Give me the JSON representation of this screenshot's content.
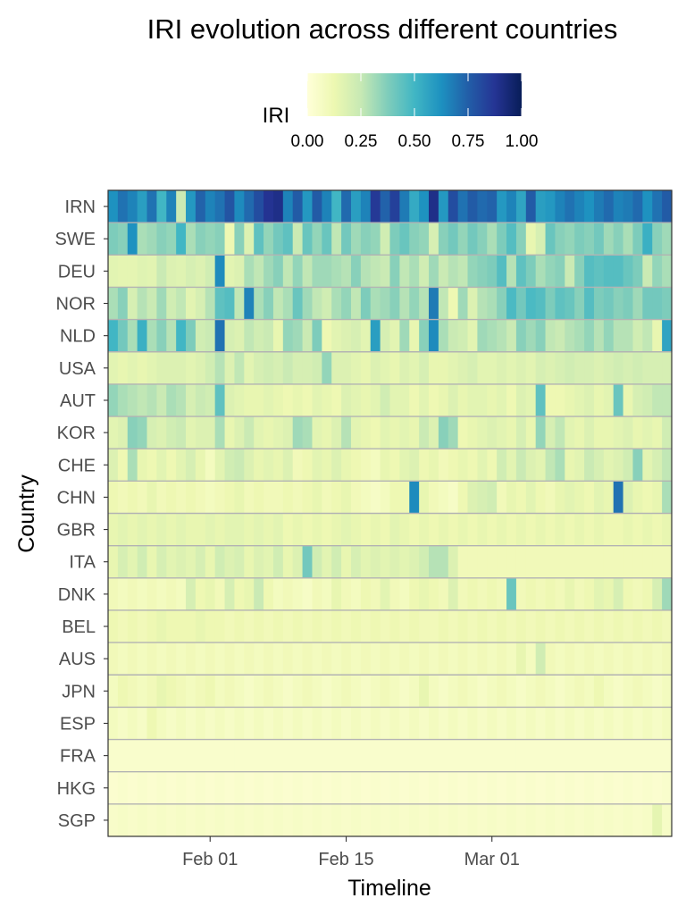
{
  "chart_data": {
    "type": "heatmap",
    "title": "IRI evolution across different countries",
    "xlabel": "Timeline",
    "ylabel": "Country",
    "x_start": "2020-01-22",
    "x_ticks": [
      "Feb 01",
      "Feb 15",
      "Mar 01"
    ],
    "x_tick_dates": [
      "2020-02-01",
      "2020-02-15",
      "2020-03-01"
    ],
    "legend": {
      "title": "IRI",
      "position": "top",
      "ticks": [
        "0.00",
        "0.25",
        "0.50",
        "0.75",
        "1.00"
      ],
      "range": [
        0,
        1
      ],
      "colors": [
        "#ffffd9",
        "#edf8b1",
        "#c7e9b4",
        "#7fcdbb",
        "#41b6c4",
        "#1d91c0",
        "#225ea8",
        "#253494",
        "#081d58"
      ]
    },
    "grid_color": "#b3b3b3",
    "countries": [
      "IRN",
      "SWE",
      "DEU",
      "NOR",
      "NLD",
      "USA",
      "AUT",
      "KOR",
      "CHE",
      "CHN",
      "GBR",
      "ITA",
      "DNK",
      "BEL",
      "AUS",
      "JPN",
      "ESP",
      "FRA",
      "HKG",
      "SGP"
    ],
    "values": [
      [
        0.62,
        0.7,
        0.66,
        0.58,
        0.7,
        0.5,
        0.66,
        0.24,
        0.6,
        0.74,
        0.66,
        0.7,
        0.78,
        0.64,
        0.72,
        0.8,
        0.88,
        0.9,
        0.66,
        0.76,
        0.6,
        0.76,
        0.66,
        0.5,
        0.72,
        0.58,
        0.66,
        0.86,
        0.74,
        0.84,
        0.68,
        0.54,
        0.62,
        0.9,
        0.6,
        0.8,
        0.7,
        0.76,
        0.72,
        0.74,
        0.6,
        0.66,
        0.56,
        0.76,
        0.58,
        0.6,
        0.66,
        0.7,
        0.66,
        0.62,
        0.68,
        0.72,
        0.66,
        0.68,
        0.72,
        0.62,
        0.7,
        0.76
      ],
      [
        0.38,
        0.36,
        0.62,
        0.3,
        0.32,
        0.36,
        0.34,
        0.5,
        0.3,
        0.36,
        0.34,
        0.36,
        0.12,
        0.36,
        0.18,
        0.44,
        0.34,
        0.4,
        0.44,
        0.24,
        0.42,
        0.34,
        0.42,
        0.26,
        0.4,
        0.32,
        0.36,
        0.34,
        0.22,
        0.38,
        0.42,
        0.36,
        0.34,
        0.2,
        0.36,
        0.4,
        0.34,
        0.4,
        0.36,
        0.3,
        0.38,
        0.46,
        0.36,
        0.14,
        0.2,
        0.42,
        0.36,
        0.34,
        0.38,
        0.36,
        0.4,
        0.32,
        0.36,
        0.3,
        0.38,
        0.52,
        0.36,
        0.32
      ],
      [
        0.16,
        0.15,
        0.15,
        0.17,
        0.16,
        0.24,
        0.18,
        0.17,
        0.2,
        0.18,
        0.22,
        0.64,
        0.16,
        0.18,
        0.3,
        0.26,
        0.32,
        0.36,
        0.26,
        0.34,
        0.26,
        0.32,
        0.32,
        0.3,
        0.28,
        0.36,
        0.28,
        0.26,
        0.24,
        0.36,
        0.26,
        0.3,
        0.22,
        0.32,
        0.24,
        0.28,
        0.26,
        0.34,
        0.36,
        0.38,
        0.46,
        0.28,
        0.44,
        0.38,
        0.3,
        0.34,
        0.36,
        0.24,
        0.36,
        0.46,
        0.44,
        0.46,
        0.46,
        0.42,
        0.38,
        0.24,
        0.34,
        0.3
      ],
      [
        0.3,
        0.36,
        0.2,
        0.28,
        0.24,
        0.32,
        0.22,
        0.26,
        0.16,
        0.2,
        0.28,
        0.44,
        0.46,
        0.26,
        0.66,
        0.3,
        0.36,
        0.26,
        0.3,
        0.42,
        0.32,
        0.26,
        0.22,
        0.3,
        0.34,
        0.26,
        0.38,
        0.3,
        0.32,
        0.36,
        0.28,
        0.34,
        0.28,
        0.68,
        0.26,
        0.12,
        0.32,
        0.18,
        0.28,
        0.3,
        0.36,
        0.48,
        0.4,
        0.48,
        0.46,
        0.38,
        0.44,
        0.42,
        0.36,
        0.46,
        0.38,
        0.4,
        0.36,
        0.38,
        0.32,
        0.4,
        0.4,
        0.38
      ],
      [
        0.5,
        0.4,
        0.3,
        0.52,
        0.3,
        0.36,
        0.28,
        0.5,
        0.38,
        0.22,
        0.24,
        0.7,
        0.2,
        0.18,
        0.26,
        0.22,
        0.24,
        0.14,
        0.34,
        0.32,
        0.24,
        0.38,
        0.12,
        0.16,
        0.18,
        0.2,
        0.16,
        0.58,
        0.2,
        0.16,
        0.32,
        0.14,
        0.36,
        0.64,
        0.3,
        0.24,
        0.22,
        0.16,
        0.32,
        0.3,
        0.28,
        0.24,
        0.36,
        0.32,
        0.36,
        0.26,
        0.24,
        0.28,
        0.3,
        0.34,
        0.28,
        0.34,
        0.28,
        0.28,
        0.22,
        0.26,
        0.14,
        0.56
      ],
      [
        0.16,
        0.14,
        0.16,
        0.14,
        0.16,
        0.18,
        0.18,
        0.18,
        0.16,
        0.18,
        0.22,
        0.28,
        0.18,
        0.26,
        0.16,
        0.2,
        0.22,
        0.2,
        0.24,
        0.2,
        0.2,
        0.22,
        0.34,
        0.18,
        0.18,
        0.16,
        0.14,
        0.18,
        0.16,
        0.14,
        0.18,
        0.16,
        0.2,
        0.14,
        0.14,
        0.16,
        0.18,
        0.2,
        0.16,
        0.16,
        0.18,
        0.16,
        0.18,
        0.16,
        0.2,
        0.18,
        0.2,
        0.22,
        0.2,
        0.2,
        0.18,
        0.2,
        0.22,
        0.2,
        0.22,
        0.2,
        0.2,
        0.2
      ],
      [
        0.34,
        0.3,
        0.28,
        0.26,
        0.28,
        0.24,
        0.3,
        0.28,
        0.2,
        0.24,
        0.22,
        0.44,
        0.18,
        0.16,
        0.14,
        0.14,
        0.16,
        0.14,
        0.12,
        0.14,
        0.12,
        0.16,
        0.14,
        0.12,
        0.18,
        0.16,
        0.14,
        0.16,
        0.22,
        0.16,
        0.16,
        0.12,
        0.16,
        0.12,
        0.14,
        0.18,
        0.14,
        0.16,
        0.16,
        0.14,
        0.16,
        0.12,
        0.18,
        0.16,
        0.44,
        0.12,
        0.12,
        0.14,
        0.16,
        0.18,
        0.14,
        0.16,
        0.42,
        0.14,
        0.2,
        0.22,
        0.26,
        0.26
      ],
      [
        0.16,
        0.18,
        0.36,
        0.34,
        0.2,
        0.18,
        0.22,
        0.24,
        0.16,
        0.18,
        0.18,
        0.3,
        0.14,
        0.18,
        0.24,
        0.16,
        0.14,
        0.16,
        0.18,
        0.32,
        0.3,
        0.16,
        0.14,
        0.18,
        0.28,
        0.16,
        0.14,
        0.12,
        0.16,
        0.14,
        0.16,
        0.14,
        0.24,
        0.18,
        0.36,
        0.32,
        0.12,
        0.14,
        0.16,
        0.18,
        0.16,
        0.14,
        0.2,
        0.14,
        0.34,
        0.2,
        0.26,
        0.16,
        0.14,
        0.18,
        0.14,
        0.14,
        0.16,
        0.18,
        0.14,
        0.16,
        0.14,
        0.22
      ],
      [
        0.18,
        0.12,
        0.3,
        0.14,
        0.12,
        0.16,
        0.12,
        0.16,
        0.2,
        0.14,
        0.08,
        0.16,
        0.22,
        0.24,
        0.18,
        0.14,
        0.16,
        0.14,
        0.18,
        0.1,
        0.12,
        0.16,
        0.14,
        0.18,
        0.14,
        0.12,
        0.1,
        0.08,
        0.14,
        0.12,
        0.16,
        0.18,
        0.12,
        0.14,
        0.1,
        0.12,
        0.14,
        0.12,
        0.16,
        0.12,
        0.22,
        0.16,
        0.24,
        0.18,
        0.16,
        0.26,
        0.3,
        0.14,
        0.16,
        0.24,
        0.2,
        0.16,
        0.18,
        0.22,
        0.36,
        0.16,
        0.2,
        0.26
      ],
      [
        0.12,
        0.1,
        0.12,
        0.1,
        0.14,
        0.1,
        0.12,
        0.1,
        0.12,
        0.1,
        0.08,
        0.1,
        0.12,
        0.14,
        0.1,
        0.12,
        0.1,
        0.1,
        0.12,
        0.1,
        0.12,
        0.14,
        0.1,
        0.12,
        0.14,
        0.1,
        0.08,
        0.06,
        0.08,
        0.12,
        0.12,
        0.64,
        0.14,
        0.1,
        0.08,
        0.06,
        0.12,
        0.18,
        0.2,
        0.22,
        0.1,
        0.14,
        0.12,
        0.16,
        0.12,
        0.1,
        0.14,
        0.16,
        0.14,
        0.12,
        0.16,
        0.14,
        0.7,
        0.18,
        0.14,
        0.12,
        0.14,
        0.3
      ],
      [
        0.14,
        0.16,
        0.14,
        0.16,
        0.14,
        0.16,
        0.14,
        0.16,
        0.14,
        0.14,
        0.16,
        0.14,
        0.16,
        0.16,
        0.14,
        0.16,
        0.14,
        0.16,
        0.12,
        0.14,
        0.12,
        0.14,
        0.12,
        0.14,
        0.16,
        0.14,
        0.12,
        0.14,
        0.12,
        0.16,
        0.14,
        0.12,
        0.14,
        0.12,
        0.14,
        0.12,
        0.14,
        0.12,
        0.14,
        0.12,
        0.14,
        0.12,
        0.14,
        0.12,
        0.14,
        0.12,
        0.14,
        0.12,
        0.14,
        0.12,
        0.14,
        0.12,
        0.12,
        0.14,
        0.12,
        0.14,
        0.12,
        0.14
      ],
      [
        0.14,
        0.2,
        0.16,
        0.22,
        0.14,
        0.2,
        0.16,
        0.18,
        0.16,
        0.2,
        0.14,
        0.22,
        0.18,
        0.2,
        0.14,
        0.18,
        0.16,
        0.22,
        0.14,
        0.18,
        0.4,
        0.22,
        0.16,
        0.22,
        0.14,
        0.2,
        0.16,
        0.18,
        0.16,
        0.18,
        0.16,
        0.18,
        0.22,
        0.28,
        0.28,
        0.18,
        0.1,
        0.1,
        0.1,
        0.1,
        0.1,
        0.1,
        0.1,
        0.1,
        0.1,
        0.1,
        0.1,
        0.1,
        0.1,
        0.1,
        0.1,
        0.1,
        0.1,
        0.1,
        0.1,
        0.1,
        0.1,
        0.1
      ],
      [
        0.1,
        0.08,
        0.1,
        0.08,
        0.1,
        0.08,
        0.1,
        0.08,
        0.2,
        0.12,
        0.14,
        0.1,
        0.2,
        0.12,
        0.14,
        0.24,
        0.12,
        0.08,
        0.1,
        0.08,
        0.06,
        0.1,
        0.08,
        0.14,
        0.1,
        0.08,
        0.12,
        0.1,
        0.16,
        0.1,
        0.08,
        0.12,
        0.14,
        0.12,
        0.1,
        0.18,
        0.1,
        0.12,
        0.1,
        0.12,
        0.1,
        0.42,
        0.1,
        0.12,
        0.1,
        0.12,
        0.1,
        0.14,
        0.1,
        0.12,
        0.16,
        0.14,
        0.2,
        0.12,
        0.1,
        0.12,
        0.2,
        0.32
      ],
      [
        0.12,
        0.1,
        0.12,
        0.1,
        0.12,
        0.14,
        0.12,
        0.12,
        0.12,
        0.14,
        0.12,
        0.12,
        0.1,
        0.12,
        0.1,
        0.12,
        0.1,
        0.12,
        0.1,
        0.12,
        0.1,
        0.12,
        0.1,
        0.12,
        0.1,
        0.12,
        0.1,
        0.12,
        0.1,
        0.12,
        0.1,
        0.12,
        0.1,
        0.1,
        0.12,
        0.1,
        0.12,
        0.1,
        0.12,
        0.1,
        0.12,
        0.1,
        0.12,
        0.1,
        0.12,
        0.1,
        0.12,
        0.1,
        0.12,
        0.1,
        0.12,
        0.1,
        0.12,
        0.1,
        0.12,
        0.1,
        0.12,
        0.1
      ],
      [
        0.1,
        0.08,
        0.1,
        0.08,
        0.1,
        0.08,
        0.1,
        0.08,
        0.1,
        0.08,
        0.1,
        0.08,
        0.1,
        0.08,
        0.1,
        0.08,
        0.1,
        0.08,
        0.1,
        0.08,
        0.1,
        0.08,
        0.1,
        0.08,
        0.1,
        0.08,
        0.1,
        0.08,
        0.1,
        0.08,
        0.1,
        0.08,
        0.1,
        0.08,
        0.1,
        0.08,
        0.1,
        0.08,
        0.1,
        0.08,
        0.1,
        0.08,
        0.14,
        0.08,
        0.22,
        0.1,
        0.08,
        0.1,
        0.08,
        0.1,
        0.08,
        0.1,
        0.08,
        0.1,
        0.08,
        0.1,
        0.08,
        0.1
      ],
      [
        0.08,
        0.12,
        0.1,
        0.08,
        0.1,
        0.14,
        0.12,
        0.1,
        0.08,
        0.1,
        0.12,
        0.08,
        0.1,
        0.08,
        0.06,
        0.08,
        0.1,
        0.08,
        0.06,
        0.08,
        0.1,
        0.08,
        0.06,
        0.08,
        0.1,
        0.08,
        0.06,
        0.08,
        0.1,
        0.08,
        0.06,
        0.08,
        0.14,
        0.08,
        0.06,
        0.08,
        0.1,
        0.08,
        0.06,
        0.08,
        0.1,
        0.08,
        0.06,
        0.08,
        0.1,
        0.08,
        0.06,
        0.08,
        0.1,
        0.08,
        0.12,
        0.08,
        0.06,
        0.08,
        0.1,
        0.08,
        0.06,
        0.08
      ],
      [
        0.08,
        0.06,
        0.08,
        0.06,
        0.12,
        0.08,
        0.06,
        0.08,
        0.06,
        0.08,
        0.06,
        0.08,
        0.06,
        0.08,
        0.06,
        0.08,
        0.06,
        0.08,
        0.06,
        0.08,
        0.06,
        0.08,
        0.06,
        0.08,
        0.06,
        0.08,
        0.06,
        0.08,
        0.06,
        0.08,
        0.06,
        0.08,
        0.06,
        0.08,
        0.06,
        0.08,
        0.06,
        0.08,
        0.06,
        0.08,
        0.06,
        0.08,
        0.06,
        0.08,
        0.06,
        0.08,
        0.06,
        0.08,
        0.06,
        0.08,
        0.06,
        0.08,
        0.06,
        0.08,
        0.06,
        0.08,
        0.06,
        0.08
      ],
      [
        0.04,
        0.04,
        0.04,
        0.04,
        0.04,
        0.04,
        0.04,
        0.04,
        0.04,
        0.04,
        0.04,
        0.04,
        0.04,
        0.04,
        0.04,
        0.04,
        0.04,
        0.04,
        0.04,
        0.04,
        0.04,
        0.04,
        0.04,
        0.04,
        0.04,
        0.04,
        0.04,
        0.04,
        0.04,
        0.04,
        0.04,
        0.04,
        0.04,
        0.04,
        0.04,
        0.04,
        0.04,
        0.04,
        0.04,
        0.04,
        0.04,
        0.04,
        0.04,
        0.04,
        0.04,
        0.04,
        0.04,
        0.04,
        0.04,
        0.04,
        0.04,
        0.04,
        0.04,
        0.04,
        0.04,
        0.04,
        0.04,
        0.04
      ],
      [
        0.03,
        0.04,
        0.03,
        0.04,
        0.03,
        0.04,
        0.03,
        0.04,
        0.03,
        0.04,
        0.03,
        0.04,
        0.03,
        0.04,
        0.03,
        0.04,
        0.03,
        0.04,
        0.03,
        0.04,
        0.03,
        0.04,
        0.03,
        0.04,
        0.03,
        0.04,
        0.03,
        0.04,
        0.03,
        0.04,
        0.03,
        0.04,
        0.03,
        0.04,
        0.03,
        0.04,
        0.03,
        0.04,
        0.03,
        0.04,
        0.03,
        0.04,
        0.03,
        0.04,
        0.03,
        0.04,
        0.03,
        0.04,
        0.03,
        0.04,
        0.03,
        0.04,
        0.03,
        0.04,
        0.03,
        0.04,
        0.03,
        0.04
      ],
      [
        0.05,
        0.06,
        0.05,
        0.06,
        0.05,
        0.06,
        0.05,
        0.06,
        0.05,
        0.06,
        0.05,
        0.06,
        0.05,
        0.06,
        0.05,
        0.06,
        0.05,
        0.06,
        0.05,
        0.06,
        0.05,
        0.06,
        0.05,
        0.06,
        0.05,
        0.06,
        0.05,
        0.06,
        0.05,
        0.06,
        0.05,
        0.06,
        0.05,
        0.06,
        0.05,
        0.06,
        0.05,
        0.06,
        0.05,
        0.06,
        0.05,
        0.06,
        0.05,
        0.06,
        0.05,
        0.06,
        0.05,
        0.06,
        0.05,
        0.06,
        0.05,
        0.06,
        0.05,
        0.06,
        0.05,
        0.06,
        0.15,
        0.06
      ]
    ]
  }
}
